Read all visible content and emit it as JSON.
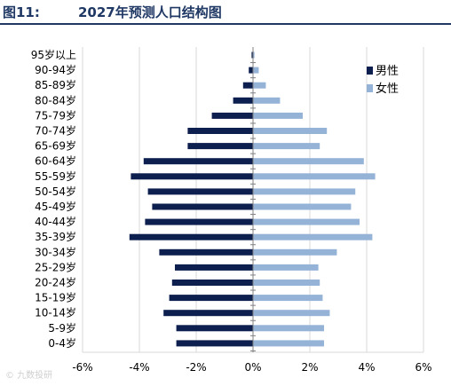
{
  "header": {
    "figure_label": "图11:",
    "title": "2027年预测人口结构图"
  },
  "watermark": "© 九数投研",
  "chart_data": {
    "type": "bar",
    "orientation": "horizontal-population-pyramid",
    "categories": [
      "95岁以上",
      "90-94岁",
      "85-89岁",
      "80-84岁",
      "75-79岁",
      "70-74岁",
      "65-69岁",
      "60-64岁",
      "55-59岁",
      "50-54岁",
      "45-49岁",
      "40-44岁",
      "35-39岁",
      "30-34岁",
      "25-29岁",
      "20-24岁",
      "15-19岁",
      "10-14岁",
      "5-9岁",
      "0-4岁"
    ],
    "series": [
      {
        "name": "男性",
        "color": "#0d1f4e",
        "values": [
          -0.05,
          -0.15,
          -0.35,
          -0.7,
          -1.45,
          -2.3,
          -2.3,
          -3.85,
          -4.3,
          -3.7,
          -3.55,
          -3.8,
          -4.35,
          -3.3,
          -2.75,
          -2.85,
          -2.95,
          -3.15,
          -2.7,
          -2.7
        ]
      },
      {
        "name": "女性",
        "color": "#95b3d7",
        "values": [
          0.05,
          0.2,
          0.45,
          0.95,
          1.75,
          2.6,
          2.35,
          3.9,
          4.3,
          3.6,
          3.45,
          3.75,
          4.2,
          2.95,
          2.3,
          2.35,
          2.45,
          2.7,
          2.5,
          2.5
        ]
      }
    ],
    "xlim": [
      -6,
      6
    ],
    "xticks": [
      -6,
      -4,
      -2,
      0,
      2,
      4,
      6
    ],
    "xtick_labels": [
      "-6%",
      "-4%",
      "-2%",
      "0%",
      "2%",
      "4%",
      "6%"
    ],
    "grid": "vertical",
    "legend": "top-right"
  }
}
